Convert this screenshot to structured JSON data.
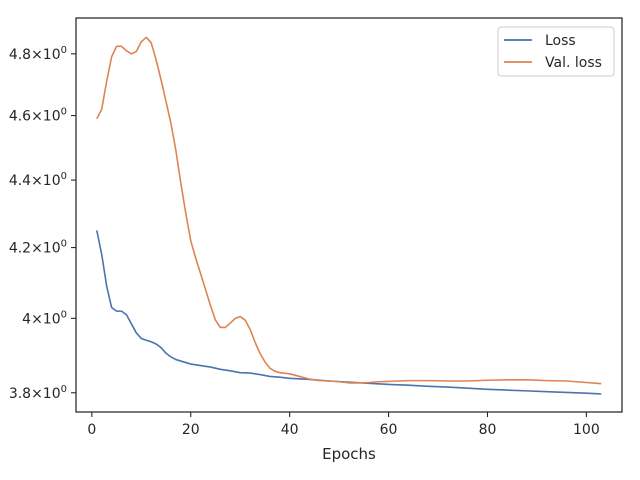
{
  "chart_data": {
    "type": "line",
    "title": "",
    "xlabel": "Epochs",
    "ylabel": "",
    "xlim": [
      -3.2,
      107.2
    ],
    "ylim": [
      3.75,
      4.92
    ],
    "y_scale": "log",
    "grid": false,
    "legend_position": "top-right",
    "x_ticks": [
      {
        "value": 0,
        "label": "0"
      },
      {
        "value": 20,
        "label": "20"
      },
      {
        "value": 40,
        "label": "40"
      },
      {
        "value": 60,
        "label": "60"
      },
      {
        "value": 80,
        "label": "80"
      },
      {
        "value": 100,
        "label": "100"
      }
    ],
    "y_ticks": [
      {
        "value": 3.8,
        "base": "3.8",
        "sep": "×",
        "exp": "10",
        "sup": "0"
      },
      {
        "value": 4.0,
        "base": "4",
        "sep": "×",
        "exp": "10",
        "sup": "0"
      },
      {
        "value": 4.2,
        "base": "4.2",
        "sep": "×",
        "exp": "10",
        "sup": "0"
      },
      {
        "value": 4.4,
        "base": "4.4",
        "sep": "×",
        "exp": "10",
        "sup": "0"
      },
      {
        "value": 4.6,
        "base": "4.6",
        "sep": "×",
        "exp": "10",
        "sup": "0"
      },
      {
        "value": 4.8,
        "base": "4.8",
        "sep": "×",
        "exp": "10",
        "sup": "0"
      }
    ],
    "series": [
      {
        "name": "Loss",
        "color": "#4c72b0",
        "points": [
          [
            1,
            4.25
          ],
          [
            2,
            4.18
          ],
          [
            3,
            4.09
          ],
          [
            4,
            4.03
          ],
          [
            5,
            4.02
          ],
          [
            6,
            4.02
          ],
          [
            7,
            4.01
          ],
          [
            8,
            3.985
          ],
          [
            9,
            3.96
          ],
          [
            10,
            3.945
          ],
          [
            11,
            3.94
          ],
          [
            12,
            3.936
          ],
          [
            13,
            3.93
          ],
          [
            14,
            3.92
          ],
          [
            15,
            3.905
          ],
          [
            16,
            3.895
          ],
          [
            17,
            3.888
          ],
          [
            18,
            3.884
          ],
          [
            19,
            3.88
          ],
          [
            20,
            3.876
          ],
          [
            22,
            3.872
          ],
          [
            24,
            3.868
          ],
          [
            26,
            3.862
          ],
          [
            28,
            3.858
          ],
          [
            30,
            3.853
          ],
          [
            32,
            3.852
          ],
          [
            34,
            3.848
          ],
          [
            36,
            3.843
          ],
          [
            38,
            3.841
          ],
          [
            40,
            3.838
          ],
          [
            44,
            3.835
          ],
          [
            48,
            3.831
          ],
          [
            52,
            3.828
          ],
          [
            56,
            3.825
          ],
          [
            60,
            3.822
          ],
          [
            64,
            3.82
          ],
          [
            68,
            3.817
          ],
          [
            72,
            3.815
          ],
          [
            76,
            3.812
          ],
          [
            80,
            3.809
          ],
          [
            84,
            3.807
          ],
          [
            88,
            3.805
          ],
          [
            92,
            3.803
          ],
          [
            96,
            3.801
          ],
          [
            100,
            3.799
          ],
          [
            103,
            3.797
          ]
        ]
      },
      {
        "name": "Val. loss",
        "color": "#dd8452",
        "points": [
          [
            1,
            4.59
          ],
          [
            2,
            4.62
          ],
          [
            3,
            4.71
          ],
          [
            4,
            4.79
          ],
          [
            5,
            4.825
          ],
          [
            6,
            4.825
          ],
          [
            7,
            4.81
          ],
          [
            8,
            4.8
          ],
          [
            9,
            4.808
          ],
          [
            10,
            4.84
          ],
          [
            11,
            4.855
          ],
          [
            12,
            4.837
          ],
          [
            13,
            4.78
          ],
          [
            14,
            4.715
          ],
          [
            15,
            4.645
          ],
          [
            16,
            4.575
          ],
          [
            17,
            4.49
          ],
          [
            18,
            4.39
          ],
          [
            19,
            4.3
          ],
          [
            20,
            4.22
          ],
          [
            21,
            4.17
          ],
          [
            22,
            4.125
          ],
          [
            23,
            4.08
          ],
          [
            24,
            4.035
          ],
          [
            25,
            3.995
          ],
          [
            26,
            3.975
          ],
          [
            27,
            3.975
          ],
          [
            28,
            3.987
          ],
          [
            29,
            4.0
          ],
          [
            30,
            4.005
          ],
          [
            31,
            3.995
          ],
          [
            32,
            3.97
          ],
          [
            33,
            3.935
          ],
          [
            34,
            3.905
          ],
          [
            35,
            3.882
          ],
          [
            36,
            3.865
          ],
          [
            37,
            3.857
          ],
          [
            38,
            3.853
          ],
          [
            40,
            3.85
          ],
          [
            42,
            3.843
          ],
          [
            44,
            3.836
          ],
          [
            46,
            3.832
          ],
          [
            48,
            3.831
          ],
          [
            50,
            3.829
          ],
          [
            52,
            3.826
          ],
          [
            54,
            3.826
          ],
          [
            56,
            3.827
          ],
          [
            58,
            3.829
          ],
          [
            60,
            3.83
          ],
          [
            64,
            3.832
          ],
          [
            68,
            3.832
          ],
          [
            72,
            3.831
          ],
          [
            76,
            3.831
          ],
          [
            80,
            3.833
          ],
          [
            84,
            3.834
          ],
          [
            88,
            3.834
          ],
          [
            92,
            3.832
          ],
          [
            96,
            3.831
          ],
          [
            100,
            3.827
          ],
          [
            103,
            3.824
          ]
        ]
      }
    ]
  }
}
